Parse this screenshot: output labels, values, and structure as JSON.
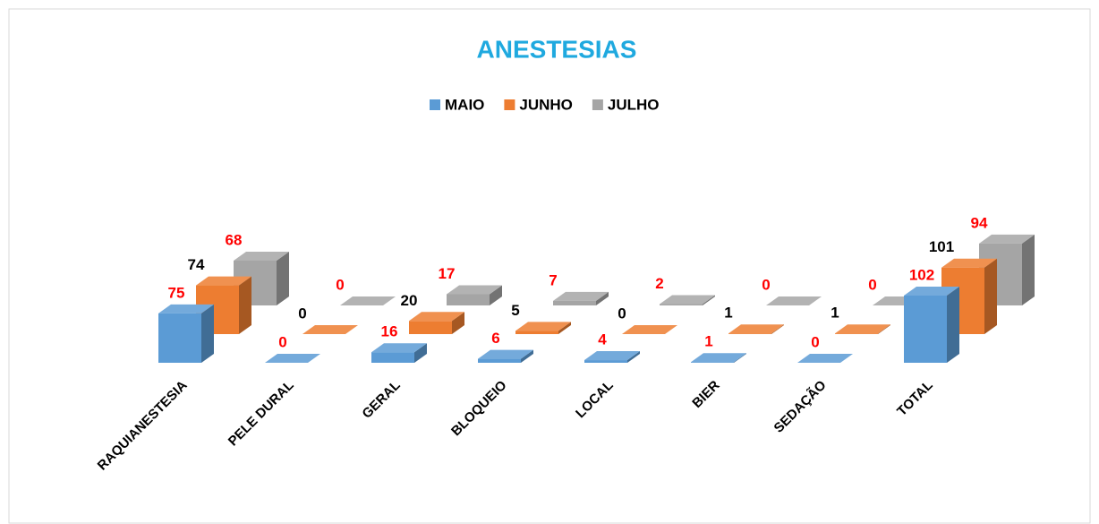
{
  "chart_data": {
    "type": "bar3d",
    "title": "ANESTESIAS",
    "categories": [
      "RAQUIANESTESIA",
      "PELE DURAL",
      "GERAL",
      "BLOQUEIO",
      "LOCAL",
      "BIER",
      "SEDAÇÃO",
      "TOTAL"
    ],
    "series": [
      {
        "name": "MAIO",
        "color": "#5b9bd5",
        "label_color": "#ff0000",
        "values": [
          75,
          0,
          16,
          6,
          4,
          1,
          0,
          102
        ]
      },
      {
        "name": "JUNHO",
        "color": "#ed7d31",
        "label_color": "#000000",
        "values": [
          74,
          0,
          20,
          5,
          0,
          1,
          1,
          101
        ]
      },
      {
        "name": "JULHO",
        "color": "#a5a5a5",
        "label_color": "#ff0000",
        "values": [
          68,
          0,
          17,
          7,
          2,
          0,
          0,
          94
        ]
      }
    ],
    "legend": "top"
  }
}
